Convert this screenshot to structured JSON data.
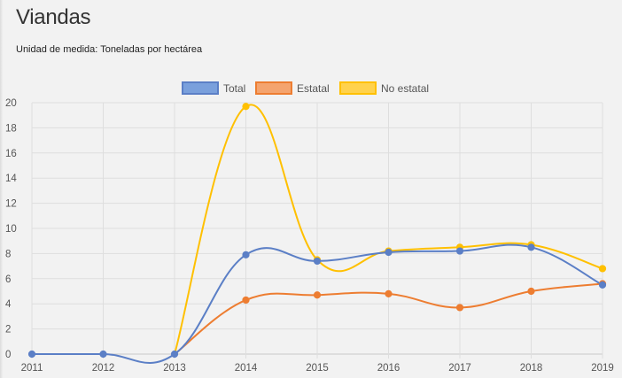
{
  "header": {
    "title": "Viandas",
    "subtitle": "Unidad de medida: Toneladas por hectárea"
  },
  "chart_data": {
    "type": "line",
    "title": "",
    "xlabel": "",
    "ylabel": "",
    "x": [
      "2011",
      "2012",
      "2013",
      "2014",
      "2015",
      "2016",
      "2017",
      "2018",
      "2019"
    ],
    "ylim": [
      0,
      20
    ],
    "yticks": [
      0,
      2,
      4,
      6,
      8,
      10,
      12,
      14,
      16,
      18,
      20
    ],
    "grid": true,
    "legend_position": "top-center",
    "series": [
      {
        "name": "Total",
        "color": "#5b7fc6",
        "fill": "#7aa0dc",
        "values": [
          0,
          0,
          0,
          7.9,
          7.4,
          8.1,
          8.2,
          8.5,
          5.5
        ],
        "show_points": [
          true,
          true,
          true,
          true,
          true,
          true,
          true,
          true,
          true
        ]
      },
      {
        "name": "Estatal",
        "color": "#ed7d31",
        "fill": "#f4a46f",
        "values": [
          null,
          null,
          0,
          4.3,
          4.7,
          4.8,
          3.7,
          5.0,
          5.6
        ],
        "show_points": [
          false,
          false,
          false,
          true,
          true,
          true,
          true,
          true,
          true
        ]
      },
      {
        "name": "No estatal",
        "color": "#ffc000",
        "fill": "#ffd24d",
        "values": [
          null,
          null,
          0,
          19.7,
          7.5,
          8.2,
          8.5,
          8.7,
          6.8
        ],
        "show_points": [
          false,
          false,
          false,
          true,
          true,
          true,
          true,
          true,
          true
        ]
      }
    ]
  }
}
